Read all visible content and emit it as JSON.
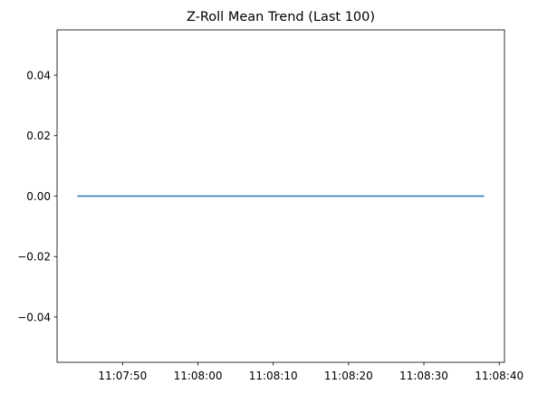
{
  "chart_data": {
    "type": "line",
    "title": "Z-Roll Mean Trend (Last 100)",
    "xlabel": "",
    "ylabel": "",
    "x_range": [
      "11:07:44",
      "11:08:38"
    ],
    "xlim": [
      "11:07:41.3",
      "11:08:40.7"
    ],
    "ylim": [
      -0.055,
      0.055
    ],
    "x_ticks": [
      "11:07:50",
      "11:08:00",
      "11:08:10",
      "11:08:20",
      "11:08:30",
      "11:08:40"
    ],
    "y_ticks": [
      0.04,
      0.02,
      0.0,
      -0.02,
      -0.04
    ],
    "y_tick_labels": [
      "0.04",
      "0.02",
      "0.00",
      "−0.02",
      "−0.04"
    ],
    "series": [
      {
        "x": [
          "11:07:44",
          "11:08:38"
        ],
        "values": [
          0.0,
          0.0
        ],
        "color": "#1f77b4"
      }
    ],
    "grid": false,
    "legend": false
  }
}
